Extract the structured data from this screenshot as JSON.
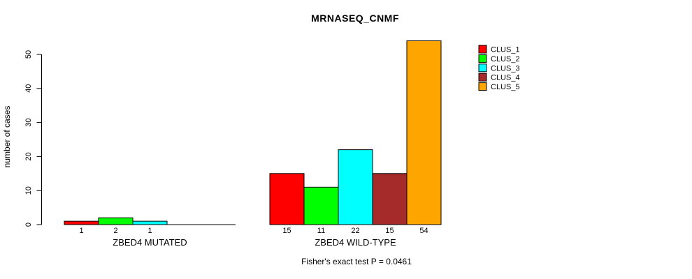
{
  "chart_data": {
    "type": "bar",
    "title": "MRNASEQ_CNMF",
    "ylabel": "number of cases",
    "xlabel": "",
    "ylim": [
      0,
      55
    ],
    "yticks": [
      0,
      10,
      20,
      30,
      40,
      50
    ],
    "grid": false,
    "legend_position": "top-right",
    "clusters": [
      {
        "name": "CLUS_1",
        "color": "#FF0000"
      },
      {
        "name": "CLUS_2",
        "color": "#00FF00"
      },
      {
        "name": "CLUS_3",
        "color": "#00FFFF"
      },
      {
        "name": "CLUS_4",
        "color": "#A52A2A"
      },
      {
        "name": "CLUS_5",
        "color": "#FFA500"
      }
    ],
    "groups": [
      {
        "label": "ZBED4 MUTATED",
        "values": [
          1,
          2,
          1,
          0,
          0
        ]
      },
      {
        "label": "ZBED4 WILD-TYPE",
        "values": [
          15,
          11,
          22,
          15,
          54
        ]
      }
    ],
    "caption": "Fisher's exact test P = 0.0461"
  },
  "colors": {
    "background": "#FFFFFF",
    "axis": "#000000",
    "bar_border": "#000000",
    "text": "#000000"
  }
}
